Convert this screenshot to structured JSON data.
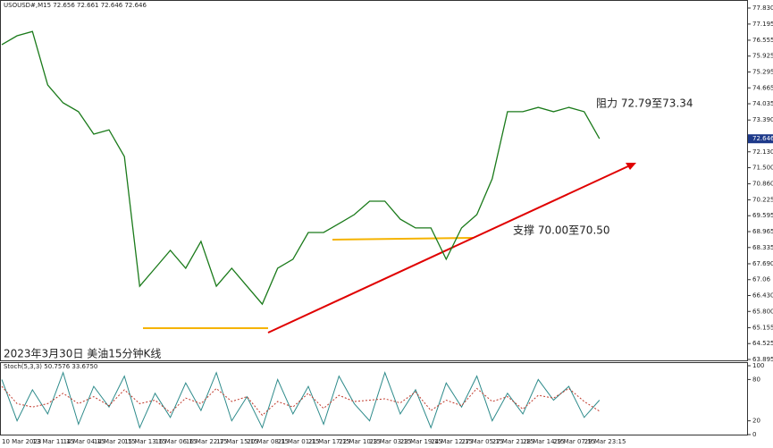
{
  "chart_data": [
    {
      "type": "line",
      "title": "USOUSD#,M15  72.656 72.661 72.646 72.646",
      "caption": "2023年3月30日 美油15分钟K线",
      "annotations": [
        "阻力 72.79至73.34",
        "支撑 70.00至70.50"
      ],
      "last_price": 72.646,
      "categories": [
        "10 Mar 2023",
        null,
        "13 Mar 11:15",
        null,
        "14 Mar 04:15",
        null,
        "14 Mar 20:15",
        null,
        "15 Mar 13:15",
        null,
        "16 Mar 06:15",
        null,
        "16 Mar 22:15",
        null,
        "17 Mar 15:15",
        null,
        "20 Mar 08:15",
        null,
        "21 Mar 01:15",
        null,
        "21 Mar 17:15",
        null,
        "22 Mar 10:15",
        null,
        "23 Mar 03:15",
        null,
        "23 Mar 19:15",
        null,
        "24 Mar 12:15",
        null,
        "27 Mar 05:15",
        null,
        "27 Mar 21:15",
        null,
        "28 Mar 14:15",
        null,
        "29 Mar 07:15",
        null,
        "29 Mar 23:15",
        null
      ],
      "series": [
        {
          "color": "#1a7a1a",
          "values": [
            76.38,
            76.73,
            76.9,
            74.78,
            74.07,
            73.72,
            72.83,
            73.0,
            71.94,
            66.8,
            67.51,
            68.22,
            67.51,
            68.58,
            66.8,
            67.51,
            66.8,
            66.09,
            67.51,
            67.87,
            68.93,
            68.93,
            69.28,
            69.64,
            70.17,
            70.17,
            69.46,
            69.11,
            69.11,
            67.87,
            69.11,
            69.64,
            71.06,
            73.72,
            73.72,
            73.89,
            73.72,
            73.89,
            73.72,
            72.65
          ]
        }
      ],
      "ylim": [
        63.895,
        77.83
      ],
      "yticks": [
        {
          "value": 77.83,
          "label": "77.830"
        },
        77.195,
        76.555,
        75.925,
        75.295,
        74.665,
        74.035,
        {
          "value": 73.39,
          "label": "73.390"
        },
        {
          "value": 72.13,
          "label": "72.130"
        },
        {
          "value": 71.5,
          "label": "71.500"
        },
        {
          "value": 70.86,
          "label": "70.860"
        },
        70.225,
        69.595,
        68.965,
        68.335,
        {
          "value": 67.69,
          "label": "67.690"
        },
        67.06,
        {
          "value": 66.43,
          "label": "66.430"
        },
        {
          "value": 65.8,
          "label": "65.800"
        },
        65.155,
        64.525,
        63.895
      ]
    },
    {
      "type": "line",
      "title": "Stoch(5,3,3) 50.7576 33.6750",
      "series": [
        {
          "color": "#2e8b8b",
          "values": [
            80,
            20,
            65,
            30,
            90,
            15,
            70,
            40,
            85,
            10,
            60,
            25,
            75,
            35,
            90,
            20,
            55,
            10,
            80,
            30,
            70,
            15,
            85,
            45,
            20,
            90,
            30,
            65,
            10,
            75,
            40,
            85,
            20,
            60,
            30,
            80,
            50,
            70,
            25,
            50
          ]
        },
        {
          "color": "#c0392b",
          "values": [
            70,
            45,
            40,
            45,
            60,
            45,
            55,
            42,
            65,
            45,
            50,
            32,
            53,
            45,
            67,
            48,
            55,
            28,
            48,
            40,
            60,
            38,
            57,
            48,
            50,
            52,
            46,
            62,
            35,
            50,
            42,
            67,
            48,
            55,
            37,
            57,
            53,
            67,
            48,
            34
          ]
        }
      ],
      "ylim": [
        0,
        100
      ],
      "yticks": [
        100,
        80,
        20,
        0
      ]
    }
  ]
}
